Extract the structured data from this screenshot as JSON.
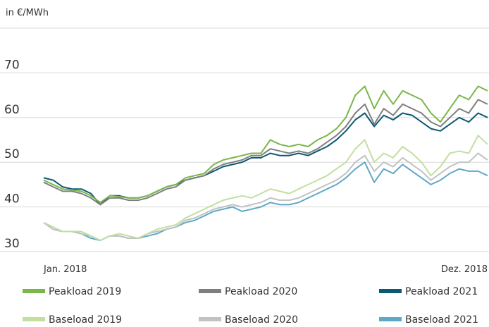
{
  "chart_data": {
    "type": "line",
    "y_label": "in €/MWh",
    "categories": [
      "Jan. 2018",
      null,
      null,
      null,
      null,
      null,
      null,
      null,
      null,
      null,
      null,
      null,
      null,
      null,
      null,
      null,
      null,
      null,
      null,
      null,
      null,
      null,
      null,
      null,
      null,
      null,
      null,
      null,
      null,
      null,
      null,
      null,
      null,
      null,
      null,
      null,
      null,
      null,
      null,
      null,
      null,
      null,
      null,
      null,
      null,
      null,
      null,
      "Dez. 2018"
    ],
    "ylim": [
      30,
      80
    ],
    "yticks": [
      30,
      40,
      50,
      60,
      70
    ],
    "grid": true,
    "series": [
      {
        "name": "Peakload 2019",
        "color": "#7ab648",
        "values": [
          46,
          45,
          44,
          43.8,
          43.5,
          42.5,
          41,
          42.5,
          42.3,
          42,
          42,
          42.5,
          43.5,
          44.5,
          45,
          46.5,
          47,
          47.5,
          49.5,
          50.5,
          51,
          51.5,
          52,
          52,
          55,
          54,
          53.5,
          54,
          53.5,
          55,
          56,
          57.5,
          60,
          65,
          67,
          62,
          66,
          63,
          66,
          65,
          64,
          61,
          59,
          62,
          65,
          64,
          67,
          66
        ]
      },
      {
        "name": "Peakload 2020",
        "color": "#7f7f7f",
        "values": [
          45.5,
          44.5,
          43.5,
          43.5,
          43,
          42,
          40.5,
          42,
          42,
          41.5,
          41.5,
          42,
          43,
          44,
          44.5,
          46,
          46.5,
          47,
          48.5,
          49.5,
          50,
          50.5,
          51.5,
          51.5,
          53,
          52.5,
          52,
          52.5,
          52,
          53,
          54.5,
          56,
          58,
          61,
          63,
          58.5,
          62,
          60.5,
          63,
          62,
          61,
          59,
          58,
          60,
          62,
          61,
          64,
          63
        ]
      },
      {
        "name": "Peakload 2021",
        "color": "#0a5a73",
        "values": [
          46.5,
          46,
          44.5,
          44,
          44,
          43,
          40.5,
          42.5,
          42.5,
          42,
          42,
          42.5,
          43.5,
          44.5,
          45,
          46,
          46.5,
          47,
          48,
          49,
          49.5,
          50,
          51,
          51,
          52,
          51.5,
          51.5,
          52,
          51.5,
          52.5,
          53.5,
          55,
          57,
          59.5,
          61,
          58,
          60.5,
          59.5,
          61,
          60.5,
          59,
          57.5,
          57,
          58.5,
          60,
          59,
          61,
          60
        ]
      },
      {
        "name": "Baseload 2019",
        "color": "#c2df9f",
        "values": [
          36.5,
          35.5,
          34.5,
          34.5,
          34.5,
          33.5,
          32.5,
          33.5,
          34,
          33.5,
          33,
          34,
          35,
          35.5,
          36,
          37.5,
          38.5,
          39.5,
          40.5,
          41.5,
          42,
          42.5,
          42,
          43,
          44,
          43.5,
          43,
          44,
          45,
          46,
          47,
          48.5,
          50,
          53,
          55,
          50,
          52,
          51,
          53.5,
          52,
          50,
          47,
          49,
          52,
          52.5,
          52,
          56,
          54
        ]
      },
      {
        "name": "Baseload 2020",
        "color": "#c2c2c2",
        "values": [
          36.5,
          35,
          34.5,
          34.5,
          34,
          33.5,
          32.5,
          33.5,
          33.5,
          33,
          33,
          34,
          34.5,
          35,
          35.5,
          37,
          37.5,
          38.5,
          39.5,
          40,
          40.5,
          40,
          40.5,
          41,
          42,
          41.5,
          41.5,
          42,
          43,
          44,
          45,
          46,
          47.5,
          50,
          51.5,
          48,
          50,
          49,
          51,
          49.5,
          48,
          46,
          47.5,
          49,
          50,
          50,
          52,
          50.5
        ]
      },
      {
        "name": "Baseload 2021",
        "color": "#5fa8c8",
        "values": [
          36.5,
          35,
          34.5,
          34.5,
          34,
          33,
          32.5,
          33.5,
          33.5,
          33,
          33,
          33.5,
          34,
          35,
          35.5,
          36.5,
          37,
          38,
          39,
          39.5,
          40,
          39,
          39.5,
          40,
          41,
          40.5,
          40.5,
          41,
          42,
          43,
          44,
          45,
          46.5,
          48.5,
          50,
          45.5,
          48.5,
          47.5,
          49.5,
          48,
          46.5,
          45,
          46,
          47.5,
          48.5,
          48,
          48,
          47
        ]
      }
    ]
  }
}
